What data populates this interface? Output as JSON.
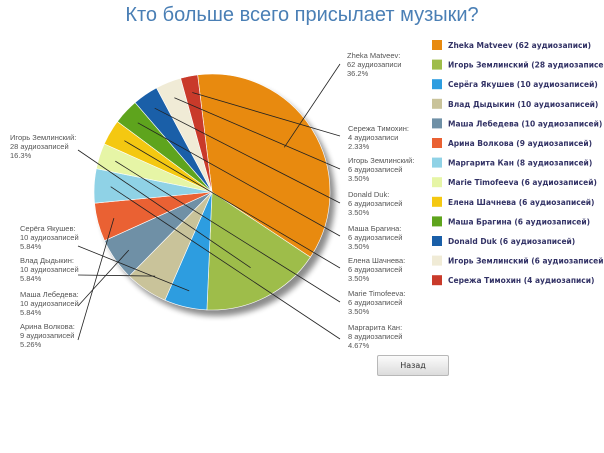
{
  "title": "Кто больше всего присылает музыки?",
  "back_button_label": "Назад",
  "chart_data": {
    "type": "pie",
    "title": "Кто больше всего присылает музыки?",
    "unit": "аудиозаписей",
    "slices": [
      {
        "name": "Zheka Matveev",
        "value": 62,
        "percent": 36.2,
        "color": "#e88a0f",
        "legend": "Zheka Matveev (62 аудиозаписи)",
        "callout": [
          "Zheka Matveev:",
          "62 аудиозаписи",
          "36.2%"
        ]
      },
      {
        "name": "Игорь Землинский",
        "value": 28,
        "percent": 16.3,
        "color": "#9ebd4a",
        "legend": "Игорь Землинский (28 аудиозаписей)",
        "callout": [
          "Игорь Землинский:",
          "28 аудиозаписей",
          "16.3%"
        ]
      },
      {
        "name": "Серёга Якушев",
        "value": 10,
        "percent": 5.84,
        "color": "#2d9de0",
        "legend": "Серёга Якушев (10 аудиозаписей)",
        "callout": [
          "Серёга Якушев:",
          "10 аудиозаписей",
          "5.84%"
        ]
      },
      {
        "name": "Влад Дыдыкин",
        "value": 10,
        "percent": 5.84,
        "color": "#c9c39a",
        "legend": "Влад Дыдыкин (10 аудиозаписей)",
        "callout": [
          "Влад Дыдыкин:",
          "10 аудиозаписей",
          "5.84%"
        ]
      },
      {
        "name": "Маша Лебедева",
        "value": 10,
        "percent": 5.84,
        "color": "#6f90a6",
        "legend": "Маша Лебедева (10 аудиозаписей)",
        "callout": [
          "Маша Лебедева:",
          "10 аудиозаписей",
          "5.84%"
        ]
      },
      {
        "name": "Арина Волкова",
        "value": 9,
        "percent": 5.26,
        "color": "#ea6133",
        "legend": "Арина Волкова (9 аудиозаписей)",
        "callout": [
          "Арина Волкова:",
          "9 аудиозаписей",
          "5.26%"
        ]
      },
      {
        "name": "Маргарита Кан",
        "value": 8,
        "percent": 4.67,
        "color": "#8fd2e6",
        "legend": "Маргарита Кан (8 аудиозаписей)",
        "callout": [
          "Маргарита Кан:",
          "8 аудиозаписей",
          "4.67%"
        ]
      },
      {
        "name": "Marie Timofeeva",
        "value": 6,
        "percent": 3.5,
        "color": "#e6f5a6",
        "legend": "Marie Timofeeva (6 аудиозаписей)",
        "callout": [
          "Marie Timofeeva:",
          "6 аудиозаписей",
          "3.50%"
        ]
      },
      {
        "name": "Елена Шачнева",
        "value": 6,
        "percent": 3.5,
        "color": "#f4c811",
        "legend": "Елена Шачнева (6 аудиозаписей)",
        "callout": [
          "Елена Шачнева:",
          "6 аудиозаписей",
          "3.50%"
        ]
      },
      {
        "name": "Маша Брагина",
        "value": 6,
        "percent": 3.5,
        "color": "#5ea41d",
        "legend": "Маша Брагина (6 аудиозаписей)",
        "callout": [
          "Маша Брагина:",
          "6 аудиозаписей",
          "3.50%"
        ]
      },
      {
        "name": "Donald Duk",
        "value": 6,
        "percent": 3.5,
        "color": "#1a5fa8",
        "legend": "Donald Duk (6 аудиозаписей)",
        "callout": [
          "Donald Duk:",
          "6 аудиозаписей",
          "3.50%"
        ]
      },
      {
        "name": "Игорь Землинский",
        "value": 6,
        "percent": 3.5,
        "color": "#f0ebd6",
        "legend": "Игорь Землинский (6 аудиозаписей)",
        "callout": [
          "Игорь Землинский:",
          "6 аудиозаписей",
          "3.50%"
        ]
      },
      {
        "name": "Сережа Тимохин",
        "value": 4,
        "percent": 2.33,
        "color": "#c93a2a",
        "legend": "Сережа Тимохин (4 аудиозаписи)",
        "callout": [
          "Сережа Тимохин:",
          "4 аудиозаписи",
          "2.33%"
        ]
      }
    ],
    "legend_position": "right"
  }
}
